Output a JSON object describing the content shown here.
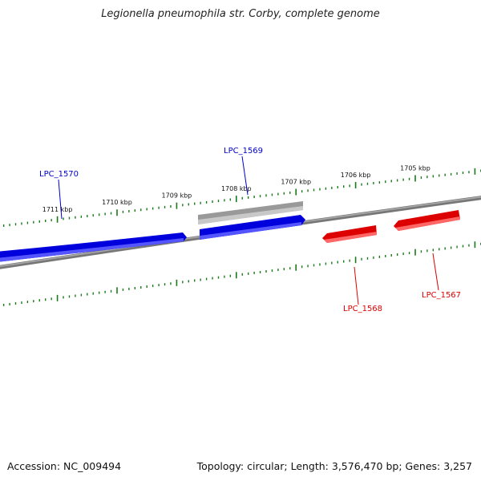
{
  "title": "Legionella pneumophila str. Corby, complete genome",
  "footer": {
    "accession": "Accession: NC_009494",
    "summary": "Topology: circular; Length: 3,576,470 bp; Genes: 3,257"
  },
  "ticks": [
    {
      "label": "1705 kbp",
      "kbp": 1705
    },
    {
      "label": "1706 kbp",
      "kbp": 1706
    },
    {
      "label": "1707 kbp",
      "kbp": 1707
    },
    {
      "label": "1708 kbp",
      "kbp": 1708
    },
    {
      "label": "1709 kbp",
      "kbp": 1709
    },
    {
      "label": "1710 kbp",
      "kbp": 1710
    },
    {
      "label": "1711 kbp",
      "kbp": 1711
    }
  ],
  "genes": [
    {
      "name": "LPC_1570",
      "strand": "forward",
      "color": "#0000cc"
    },
    {
      "name": "LPC_1569",
      "strand": "forward",
      "color": "#0000cc"
    },
    {
      "name": "LPC_1568",
      "strand": "reverse",
      "color": "#dd0000"
    },
    {
      "name": "LPC_1567",
      "strand": "reverse",
      "color": "#dd0000"
    }
  ],
  "colors": {
    "backbone": "#888888",
    "ticks": "#1a7a1a",
    "forward": "#0000cc",
    "reverse": "#dd0000",
    "feature": "#aaaaaa"
  }
}
